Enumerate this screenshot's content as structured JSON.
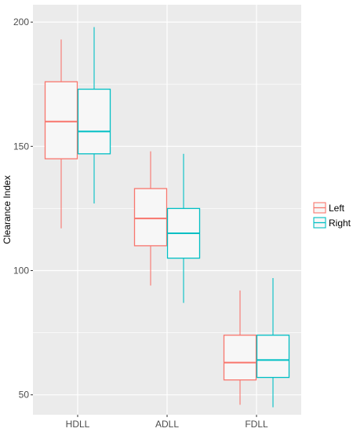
{
  "chart_data": {
    "type": "boxplot",
    "title": "",
    "xlabel": "",
    "ylabel": "Clearance Index",
    "ylim": [
      42,
      207
    ],
    "yticks": [
      50,
      100,
      150,
      200
    ],
    "categories": [
      "HDLL",
      "ADLL",
      "FDLL"
    ],
    "grid": true,
    "legend_position": "right",
    "series": [
      {
        "name": "Left",
        "color": "#F8766D",
        "boxes": [
          {
            "category": "HDLL",
            "whisker_low": 117,
            "q1": 145,
            "median": 160,
            "q3": 176,
            "whisker_high": 193
          },
          {
            "category": "ADLL",
            "whisker_low": 94,
            "q1": 110,
            "median": 121,
            "q3": 133,
            "whisker_high": 148
          },
          {
            "category": "FDLL",
            "whisker_low": 46,
            "q1": 56,
            "median": 63,
            "q3": 74,
            "whisker_high": 92
          }
        ]
      },
      {
        "name": "Right",
        "color": "#00BFC4",
        "boxes": [
          {
            "category": "HDLL",
            "whisker_low": 127,
            "q1": 147,
            "median": 156,
            "q3": 173,
            "whisker_high": 198
          },
          {
            "category": "ADLL",
            "whisker_low": 87,
            "q1": 105,
            "median": 115,
            "q3": 125,
            "whisker_high": 147
          },
          {
            "category": "FDLL",
            "whisker_low": 45,
            "q1": 57,
            "median": 64,
            "q3": 74,
            "whisker_high": 97
          }
        ]
      }
    ]
  },
  "style": {
    "panel_bg": "#EBEBEB",
    "grid_color": "#FFFFFF",
    "box_fill": "#F7F7F7"
  }
}
